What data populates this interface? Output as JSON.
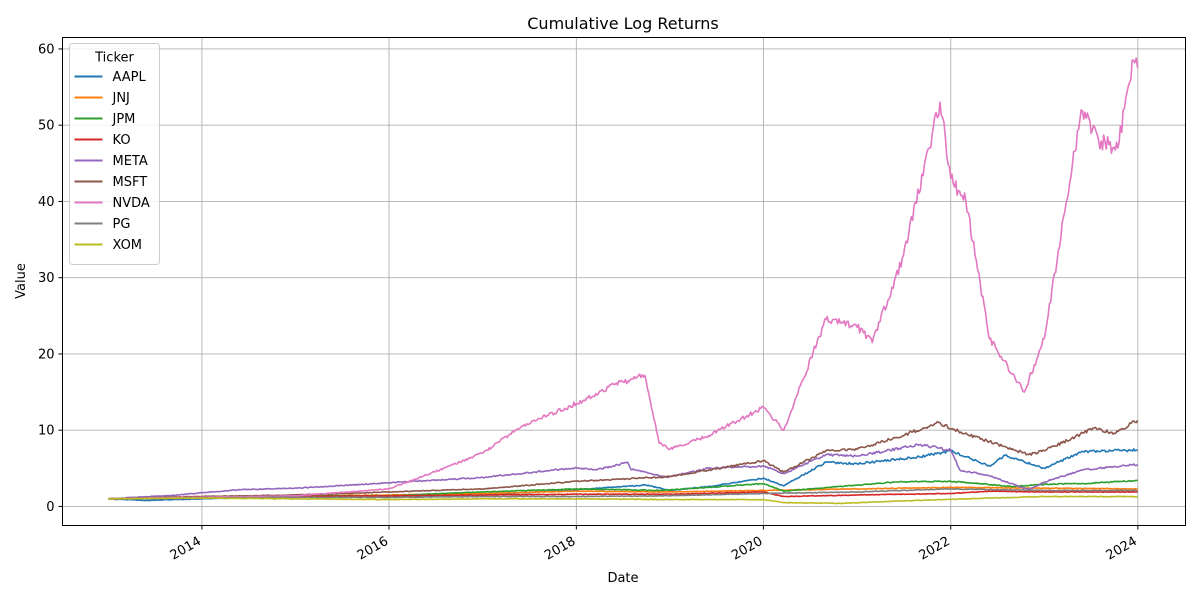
{
  "chart_data": {
    "type": "line",
    "title": "Cumulative Log Returns",
    "xlabel": "Date",
    "ylabel": "Value",
    "xlim": [
      "2012-07-06",
      "2024-07-05"
    ],
    "ylim": [
      -2.5,
      61.5
    ],
    "x_ticks": [
      "2014",
      "2016",
      "2018",
      "2020",
      "2022",
      "2024"
    ],
    "y_ticks": [
      0,
      10,
      20,
      30,
      40,
      50,
      60
    ],
    "grid": true,
    "legend": {
      "title": "Ticker",
      "placement": "top-left"
    },
    "series": [
      {
        "name": "AAPL",
        "color": "#1f77b4",
        "points": [
          [
            "2013-01-01",
            1.0
          ],
          [
            "2013-06-01",
            0.8
          ],
          [
            "2014-01-01",
            1.0
          ],
          [
            "2015-01-01",
            1.4
          ],
          [
            "2016-01-01",
            1.3
          ],
          [
            "2017-01-01",
            1.5
          ],
          [
            "2018-01-01",
            2.2
          ],
          [
            "2018-10-01",
            2.8
          ],
          [
            "2019-01-01",
            2.1
          ],
          [
            "2019-06-01",
            2.6
          ],
          [
            "2020-01-01",
            3.7
          ],
          [
            "2020-03-20",
            2.7
          ],
          [
            "2020-09-01",
            5.8
          ],
          [
            "2021-01-01",
            5.6
          ],
          [
            "2021-09-01",
            6.5
          ],
          [
            "2022-01-01",
            7.3
          ],
          [
            "2022-06-01",
            5.3
          ],
          [
            "2022-08-01",
            6.7
          ],
          [
            "2023-01-01",
            5.0
          ],
          [
            "2023-06-01",
            7.2
          ],
          [
            "2023-12-31",
            7.4
          ]
        ]
      },
      {
        "name": "JNJ",
        "color": "#ff7f0e",
        "points": [
          [
            "2013-01-01",
            1.0
          ],
          [
            "2014-01-01",
            1.3
          ],
          [
            "2015-01-01",
            1.4
          ],
          [
            "2016-01-01",
            1.5
          ],
          [
            "2017-01-01",
            1.7
          ],
          [
            "2018-01-01",
            2.0
          ],
          [
            "2019-01-01",
            1.9
          ],
          [
            "2020-01-01",
            2.1
          ],
          [
            "2021-01-01",
            2.3
          ],
          [
            "2022-01-01",
            2.5
          ],
          [
            "2023-01-01",
            2.4
          ],
          [
            "2023-12-31",
            2.3
          ]
        ]
      },
      {
        "name": "JPM",
        "color": "#2ca02c",
        "points": [
          [
            "2013-01-01",
            1.0
          ],
          [
            "2014-01-01",
            1.2
          ],
          [
            "2015-01-01",
            1.4
          ],
          [
            "2016-01-01",
            1.4
          ],
          [
            "2017-01-01",
            1.9
          ],
          [
            "2018-01-01",
            2.3
          ],
          [
            "2018-12-01",
            2.1
          ],
          [
            "2019-06-01",
            2.5
          ],
          [
            "2020-01-01",
            3.0
          ],
          [
            "2020-03-20",
            2.0
          ],
          [
            "2021-01-01",
            2.8
          ],
          [
            "2021-06-01",
            3.2
          ],
          [
            "2022-01-01",
            3.3
          ],
          [
            "2022-09-01",
            2.6
          ],
          [
            "2023-01-01",
            2.9
          ],
          [
            "2023-06-01",
            3.0
          ],
          [
            "2023-12-31",
            3.4
          ]
        ]
      },
      {
        "name": "KO",
        "color": "#d62728",
        "points": [
          [
            "2013-01-01",
            1.0
          ],
          [
            "2014-01-01",
            1.1
          ],
          [
            "2015-01-01",
            1.3
          ],
          [
            "2016-01-01",
            1.4
          ],
          [
            "2017-01-01",
            1.5
          ],
          [
            "2018-01-01",
            1.6
          ],
          [
            "2019-01-01",
            1.6
          ],
          [
            "2020-01-01",
            1.9
          ],
          [
            "2020-03-20",
            1.3
          ],
          [
            "2021-01-01",
            1.5
          ],
          [
            "2022-01-01",
            1.7
          ],
          [
            "2022-06-01",
            2.0
          ],
          [
            "2023-01-01",
            1.9
          ],
          [
            "2023-12-31",
            1.9
          ]
        ]
      },
      {
        "name": "META",
        "color": "#9467bd",
        "points": [
          [
            "2013-01-01",
            1.0
          ],
          [
            "2013-10-01",
            1.5
          ],
          [
            "2014-01-01",
            1.8
          ],
          [
            "2014-06-01",
            2.2
          ],
          [
            "2015-01-01",
            2.4
          ],
          [
            "2016-01-01",
            3.1
          ],
          [
            "2016-06-01",
            3.4
          ],
          [
            "2017-01-01",
            3.8
          ],
          [
            "2018-01-01",
            5.1
          ],
          [
            "2018-03-20",
            4.8
          ],
          [
            "2018-07-20",
            5.8
          ],
          [
            "2018-08-01",
            4.9
          ],
          [
            "2018-12-20",
            3.8
          ],
          [
            "2019-06-01",
            5.0
          ],
          [
            "2020-01-01",
            5.3
          ],
          [
            "2020-03-20",
            4.3
          ],
          [
            "2020-09-01",
            6.8
          ],
          [
            "2021-01-01",
            6.6
          ],
          [
            "2021-09-01",
            8.1
          ],
          [
            "2022-01-01",
            7.4
          ],
          [
            "2022-02-05",
            4.8
          ],
          [
            "2022-06-01",
            4.0
          ],
          [
            "2022-11-01",
            2.2
          ],
          [
            "2023-01-01",
            3.2
          ],
          [
            "2023-06-01",
            4.8
          ],
          [
            "2023-12-31",
            5.5
          ]
        ]
      },
      {
        "name": "MSFT",
        "color": "#8c564b",
        "points": [
          [
            "2013-01-01",
            1.0
          ],
          [
            "2014-01-01",
            1.3
          ],
          [
            "2015-01-01",
            1.5
          ],
          [
            "2016-01-01",
            1.9
          ],
          [
            "2017-01-01",
            2.3
          ],
          [
            "2018-01-01",
            3.3
          ],
          [
            "2019-01-01",
            3.9
          ],
          [
            "2020-01-01",
            6.0
          ],
          [
            "2020-03-20",
            4.5
          ],
          [
            "2020-09-01",
            7.3
          ],
          [
            "2021-01-01",
            7.5
          ],
          [
            "2021-06-01",
            9.0
          ],
          [
            "2021-11-15",
            11.0
          ],
          [
            "2022-01-01",
            10.2
          ],
          [
            "2022-06-01",
            8.5
          ],
          [
            "2022-11-01",
            6.8
          ],
          [
            "2023-01-01",
            7.3
          ],
          [
            "2023-07-15",
            10.3
          ],
          [
            "2023-10-01",
            9.6
          ],
          [
            "2023-12-31",
            11.3
          ]
        ]
      },
      {
        "name": "NVDA",
        "color": "#e377c2",
        "points": [
          [
            "2013-01-01",
            1.0
          ],
          [
            "2014-01-01",
            1.2
          ],
          [
            "2015-01-01",
            1.4
          ],
          [
            "2016-01-01",
            2.3
          ],
          [
            "2016-06-01",
            4.2
          ],
          [
            "2017-01-01",
            7.0
          ],
          [
            "2017-06-01",
            10.5
          ],
          [
            "2018-01-01",
            13.5
          ],
          [
            "2018-06-01",
            16.0
          ],
          [
            "2018-09-25",
            17.2
          ],
          [
            "2018-11-20",
            8.3
          ],
          [
            "2019-01-01",
            7.5
          ],
          [
            "2019-06-01",
            9.3
          ],
          [
            "2020-01-01",
            13.0
          ],
          [
            "2020-03-20",
            10.0
          ],
          [
            "2020-09-01",
            24.5
          ],
          [
            "2021-01-01",
            23.5
          ],
          [
            "2021-03-01",
            21.5
          ],
          [
            "2021-07-01",
            33.0
          ],
          [
            "2021-11-20",
            53.0
          ],
          [
            "2022-01-01",
            43.0
          ],
          [
            "2022-03-01",
            40.0
          ],
          [
            "2022-06-01",
            22.0
          ],
          [
            "2022-10-15",
            15.0
          ],
          [
            "2023-01-01",
            22.0
          ],
          [
            "2023-05-25",
            52.0
          ],
          [
            "2023-08-01",
            48.0
          ],
          [
            "2023-10-15",
            47.0
          ],
          [
            "2023-12-15",
            58.5
          ],
          [
            "2023-12-31",
            57.5
          ]
        ]
      },
      {
        "name": "PG",
        "color": "#7f7f7f",
        "points": [
          [
            "2013-01-01",
            1.0
          ],
          [
            "2014-01-01",
            1.1
          ],
          [
            "2015-01-01",
            1.2
          ],
          [
            "2016-01-01",
            1.2
          ],
          [
            "2017-01-01",
            1.3
          ],
          [
            "2018-01-01",
            1.3
          ],
          [
            "2019-01-01",
            1.4
          ],
          [
            "2020-01-01",
            1.7
          ],
          [
            "2021-01-01",
            1.9
          ],
          [
            "2022-01-01",
            2.3
          ],
          [
            "2023-01-01",
            2.1
          ],
          [
            "2023-12-31",
            2.1
          ]
        ]
      },
      {
        "name": "XOM",
        "color": "#bcbd22",
        "points": [
          [
            "2013-01-01",
            1.0
          ],
          [
            "2014-01-01",
            1.1
          ],
          [
            "2015-01-01",
            1.0
          ],
          [
            "2016-01-01",
            0.9
          ],
          [
            "2017-01-01",
            1.0
          ],
          [
            "2018-01-01",
            1.0
          ],
          [
            "2019-01-01",
            0.9
          ],
          [
            "2020-01-01",
            0.9
          ],
          [
            "2020-03-20",
            0.5
          ],
          [
            "2020-11-01",
            0.4
          ],
          [
            "2021-06-01",
            0.7
          ],
          [
            "2022-06-01",
            1.1
          ],
          [
            "2023-01-01",
            1.3
          ],
          [
            "2023-12-31",
            1.3
          ]
        ]
      }
    ]
  }
}
